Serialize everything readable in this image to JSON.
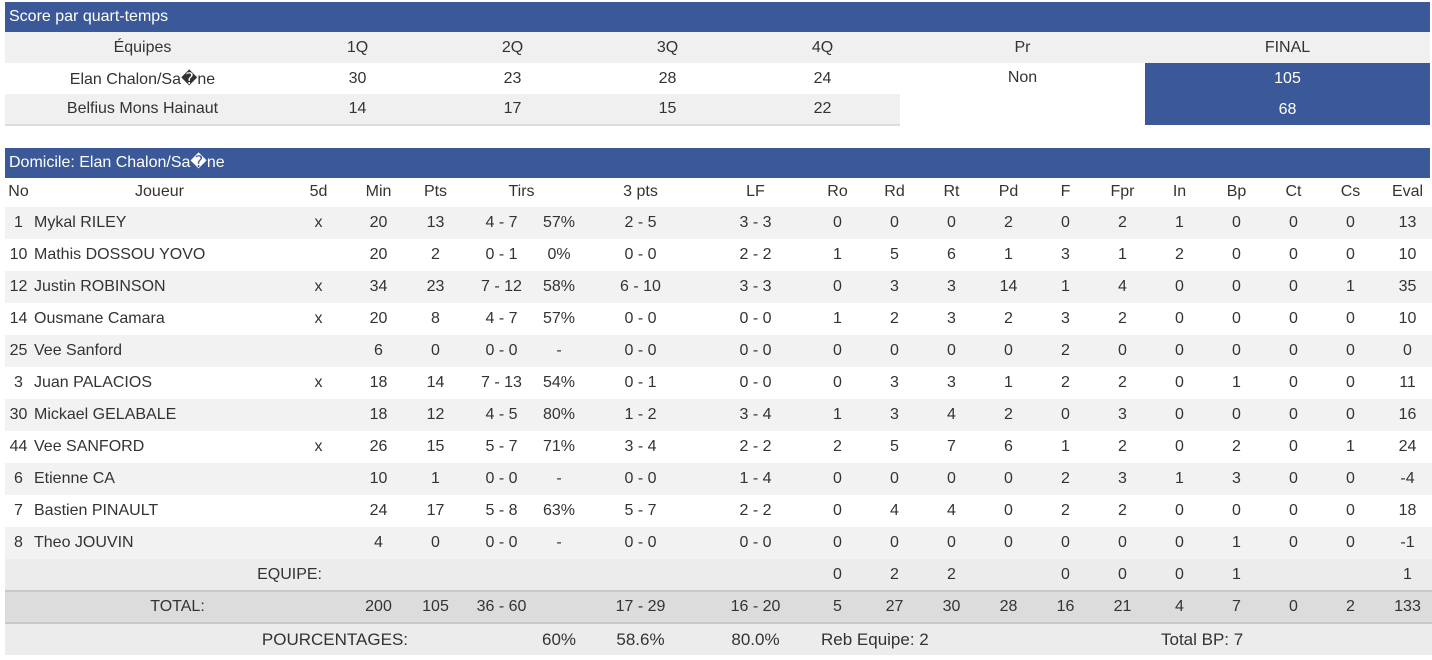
{
  "score": {
    "title": "Score par quart-temps",
    "headers": [
      "Équipes",
      "1Q",
      "2Q",
      "3Q",
      "4Q",
      "Pr",
      "FINAL"
    ],
    "teams": [
      {
        "name": "Elan Chalon/Sa�ne",
        "q": [
          "30",
          "23",
          "28",
          "24"
        ],
        "final": "105"
      },
      {
        "name": "Belfius Mons Hainaut",
        "q": [
          "14",
          "17",
          "15",
          "22"
        ],
        "final": "68"
      }
    ],
    "prolongation": "Non"
  },
  "home": {
    "title": "Domicile: Elan Chalon/Sa�ne",
    "columns": [
      "No",
      "Joueur",
      "5d",
      "Min",
      "Pts",
      "Tirs",
      "3 pts",
      "LF",
      "Ro",
      "Rd",
      "Rt",
      "Pd",
      "F",
      "Fpr",
      "In",
      "Bp",
      "Ct",
      "Cs",
      "Eval"
    ],
    "players": [
      {
        "no": "1",
        "name": "Mykal RILEY",
        "five": "x",
        "min": "20",
        "pts": "13",
        "tirs": "4 - 7",
        "tirs_pct": "57%",
        "three": "2 - 5",
        "lf": "3 - 3",
        "ro": "0",
        "rd": "0",
        "rt": "0",
        "pd": "2",
        "f": "0",
        "fpr": "2",
        "in": "1",
        "bp": "0",
        "ct": "0",
        "cs": "0",
        "eval": "13"
      },
      {
        "no": "10",
        "name": "Mathis DOSSOU YOVO",
        "five": "",
        "min": "20",
        "pts": "2",
        "tirs": "0 - 1",
        "tirs_pct": "0%",
        "three": "0 - 0",
        "lf": "2 - 2",
        "ro": "1",
        "rd": "5",
        "rt": "6",
        "pd": "1",
        "f": "3",
        "fpr": "1",
        "in": "2",
        "bp": "0",
        "ct": "0",
        "cs": "0",
        "eval": "10"
      },
      {
        "no": "12",
        "name": "Justin ROBINSON",
        "five": "x",
        "min": "34",
        "pts": "23",
        "tirs": "7 - 12",
        "tirs_pct": "58%",
        "three": "6 - 10",
        "lf": "3 - 3",
        "ro": "0",
        "rd": "3",
        "rt": "3",
        "pd": "14",
        "f": "1",
        "fpr": "4",
        "in": "0",
        "bp": "0",
        "ct": "0",
        "cs": "1",
        "eval": "35"
      },
      {
        "no": "14",
        "name": "Ousmane Camara",
        "five": "x",
        "min": "20",
        "pts": "8",
        "tirs": "4 - 7",
        "tirs_pct": "57%",
        "three": "0 - 0",
        "lf": "0 - 0",
        "ro": "1",
        "rd": "2",
        "rt": "3",
        "pd": "2",
        "f": "3",
        "fpr": "2",
        "in": "0",
        "bp": "0",
        "ct": "0",
        "cs": "0",
        "eval": "10"
      },
      {
        "no": "25",
        "name": "Vee Sanford",
        "five": "",
        "min": "6",
        "pts": "0",
        "tirs": "0 - 0",
        "tirs_pct": "-",
        "three": "0 - 0",
        "lf": "0 - 0",
        "ro": "0",
        "rd": "0",
        "rt": "0",
        "pd": "0",
        "f": "2",
        "fpr": "0",
        "in": "0",
        "bp": "0",
        "ct": "0",
        "cs": "0",
        "eval": "0"
      },
      {
        "no": "3",
        "name": "Juan PALACIOS",
        "five": "x",
        "min": "18",
        "pts": "14",
        "tirs": "7 - 13",
        "tirs_pct": "54%",
        "three": "0 - 1",
        "lf": "0 - 0",
        "ro": "0",
        "rd": "3",
        "rt": "3",
        "pd": "1",
        "f": "2",
        "fpr": "2",
        "in": "0",
        "bp": "1",
        "ct": "0",
        "cs": "0",
        "eval": "11"
      },
      {
        "no": "30",
        "name": "Mickael GELABALE",
        "five": "",
        "min": "18",
        "pts": "12",
        "tirs": "4 - 5",
        "tirs_pct": "80%",
        "three": "1 - 2",
        "lf": "3 - 4",
        "ro": "1",
        "rd": "3",
        "rt": "4",
        "pd": "2",
        "f": "0",
        "fpr": "3",
        "in": "0",
        "bp": "0",
        "ct": "0",
        "cs": "0",
        "eval": "16"
      },
      {
        "no": "44",
        "name": "Vee SANFORD",
        "five": "x",
        "min": "26",
        "pts": "15",
        "tirs": "5 - 7",
        "tirs_pct": "71%",
        "three": "3 - 4",
        "lf": "2 - 2",
        "ro": "2",
        "rd": "5",
        "rt": "7",
        "pd": "6",
        "f": "1",
        "fpr": "2",
        "in": "0",
        "bp": "2",
        "ct": "0",
        "cs": "1",
        "eval": "24"
      },
      {
        "no": "6",
        "name": "Etienne CA",
        "five": "",
        "min": "10",
        "pts": "1",
        "tirs": "0 - 0",
        "tirs_pct": "-",
        "three": "0 - 0",
        "lf": "1 - 4",
        "ro": "0",
        "rd": "0",
        "rt": "0",
        "pd": "0",
        "f": "2",
        "fpr": "3",
        "in": "1",
        "bp": "3",
        "ct": "0",
        "cs": "0",
        "eval": "-4"
      },
      {
        "no": "7",
        "name": "Bastien PINAULT",
        "five": "",
        "min": "24",
        "pts": "17",
        "tirs": "5 - 8",
        "tirs_pct": "63%",
        "three": "5 - 7",
        "lf": "2 - 2",
        "ro": "0",
        "rd": "4",
        "rt": "4",
        "pd": "0",
        "f": "2",
        "fpr": "2",
        "in": "0",
        "bp": "0",
        "ct": "0",
        "cs": "0",
        "eval": "18"
      },
      {
        "no": "8",
        "name": "Theo JOUVIN",
        "five": "",
        "min": "4",
        "pts": "0",
        "tirs": "0 - 0",
        "tirs_pct": "-",
        "three": "0 - 0",
        "lf": "0 - 0",
        "ro": "0",
        "rd": "0",
        "rt": "0",
        "pd": "0",
        "f": "0",
        "fpr": "0",
        "in": "0",
        "bp": "1",
        "ct": "0",
        "cs": "0",
        "eval": "-1"
      }
    ],
    "equipe": {
      "label": "EQUIPE:",
      "ro": "0",
      "rd": "2",
      "rt": "2",
      "f": "0",
      "fpr": "0",
      "in": "0",
      "bp": "1",
      "eval": "1"
    },
    "total": {
      "label": "TOTAL:",
      "min": "200",
      "pts": "105",
      "tirs": "36 - 60",
      "three": "17 - 29",
      "lf": "16 - 20",
      "ro": "5",
      "rd": "27",
      "rt": "30",
      "pd": "28",
      "f": "16",
      "fpr": "21",
      "in": "4",
      "bp": "7",
      "ct": "0",
      "cs": "2",
      "eval": "133"
    },
    "pourcentages": {
      "label": "POURCENTAGES:",
      "tirs": "60%",
      "three": "58.6%",
      "lf": "80.0%",
      "reb_equipe": "Reb Equipe: 2",
      "total_bp": "Total BP: 7"
    }
  }
}
